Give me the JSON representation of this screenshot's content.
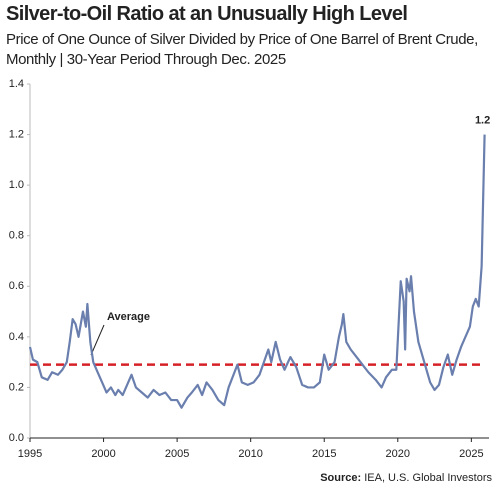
{
  "chart_data": {
    "type": "line",
    "title": "Silver-to-Oil Ratio at an Unusually High Level",
    "subtitle": "Price of One Ounce of Silver Divided by Price of One Barrel of Brent Crude, Monthly | 30-Year Period Through Dec. 2025",
    "source_label": "Source:",
    "source": "IEA, U.S. Global Investors",
    "average": 0.29,
    "average_label": "Average",
    "average_color": "#d62027",
    "xlim": [
      1995,
      2026.2
    ],
    "xticks": [
      1995,
      2000,
      2005,
      2010,
      2015,
      2020,
      2025
    ],
    "ylim": [
      0,
      1.4
    ],
    "yticks": [
      {
        "value": 0,
        "label": "0.0"
      },
      0.2,
      0.4,
      0.6,
      0.8,
      {
        "value": 1,
        "label": "1.0"
      },
      1.2,
      1.4
    ],
    "grid": false,
    "x": [
      1995.0,
      1995.2,
      1995.5,
      1995.8,
      1996.2,
      1996.5,
      1996.9,
      1997.2,
      1997.5,
      1997.7,
      1997.9,
      1998.1,
      1998.3,
      1998.6,
      1998.8,
      1998.9,
      1999.1,
      1999.3,
      1999.6,
      1999.9,
      2000.2,
      2000.5,
      2000.8,
      2001.0,
      2001.3,
      2001.6,
      2001.9,
      2002.2,
      2002.6,
      2003.0,
      2003.4,
      2003.8,
      2004.2,
      2004.6,
      2005.0,
      2005.3,
      2005.7,
      2006.0,
      2006.4,
      2006.7,
      2007.0,
      2007.4,
      2007.8,
      2008.2,
      2008.5,
      2008.9,
      2009.1,
      2009.4,
      2009.8,
      2010.2,
      2010.6,
      2010.9,
      2011.2,
      2011.4,
      2011.7,
      2012.0,
      2012.3,
      2012.7,
      2013.1,
      2013.5,
      2013.9,
      2014.3,
      2014.7,
      2015.0,
      2015.3,
      2015.7,
      2016.0,
      2016.2,
      2016.3,
      2016.5,
      2016.8,
      2017.2,
      2017.6,
      2018.0,
      2018.5,
      2018.9,
      2019.2,
      2019.6,
      2019.9,
      2020.2,
      2020.4,
      2020.5,
      2020.6,
      2020.8,
      2020.9,
      2021.1,
      2021.4,
      2021.8,
      2022.2,
      2022.5,
      2022.8,
      2023.1,
      2023.4,
      2023.7,
      2024.0,
      2024.3,
      2024.6,
      2024.9,
      2025.1,
      2025.3,
      2025.5,
      2025.7,
      2025.9
    ],
    "series": [
      {
        "color": "#6a7fae",
        "values": [
          0.36,
          0.31,
          0.3,
          0.24,
          0.23,
          0.26,
          0.25,
          0.27,
          0.3,
          0.38,
          0.47,
          0.45,
          0.4,
          0.5,
          0.44,
          0.53,
          0.38,
          0.3,
          0.26,
          0.22,
          0.18,
          0.2,
          0.17,
          0.19,
          0.17,
          0.21,
          0.25,
          0.2,
          0.18,
          0.16,
          0.19,
          0.17,
          0.18,
          0.15,
          0.15,
          0.12,
          0.16,
          0.18,
          0.21,
          0.17,
          0.22,
          0.19,
          0.15,
          0.13,
          0.2,
          0.26,
          0.29,
          0.22,
          0.21,
          0.22,
          0.25,
          0.3,
          0.35,
          0.3,
          0.38,
          0.31,
          0.27,
          0.32,
          0.28,
          0.21,
          0.2,
          0.2,
          0.22,
          0.33,
          0.27,
          0.3,
          0.4,
          0.45,
          0.49,
          0.38,
          0.35,
          0.32,
          0.29,
          0.26,
          0.23,
          0.2,
          0.24,
          0.27,
          0.27,
          0.62,
          0.54,
          0.35,
          0.63,
          0.58,
          0.64,
          0.5,
          0.38,
          0.3,
          0.22,
          0.19,
          0.21,
          0.28,
          0.33,
          0.25,
          0.31,
          0.36,
          0.4,
          0.44,
          0.52,
          0.55,
          0.52,
          0.68,
          1.2
        ]
      }
    ]
  }
}
